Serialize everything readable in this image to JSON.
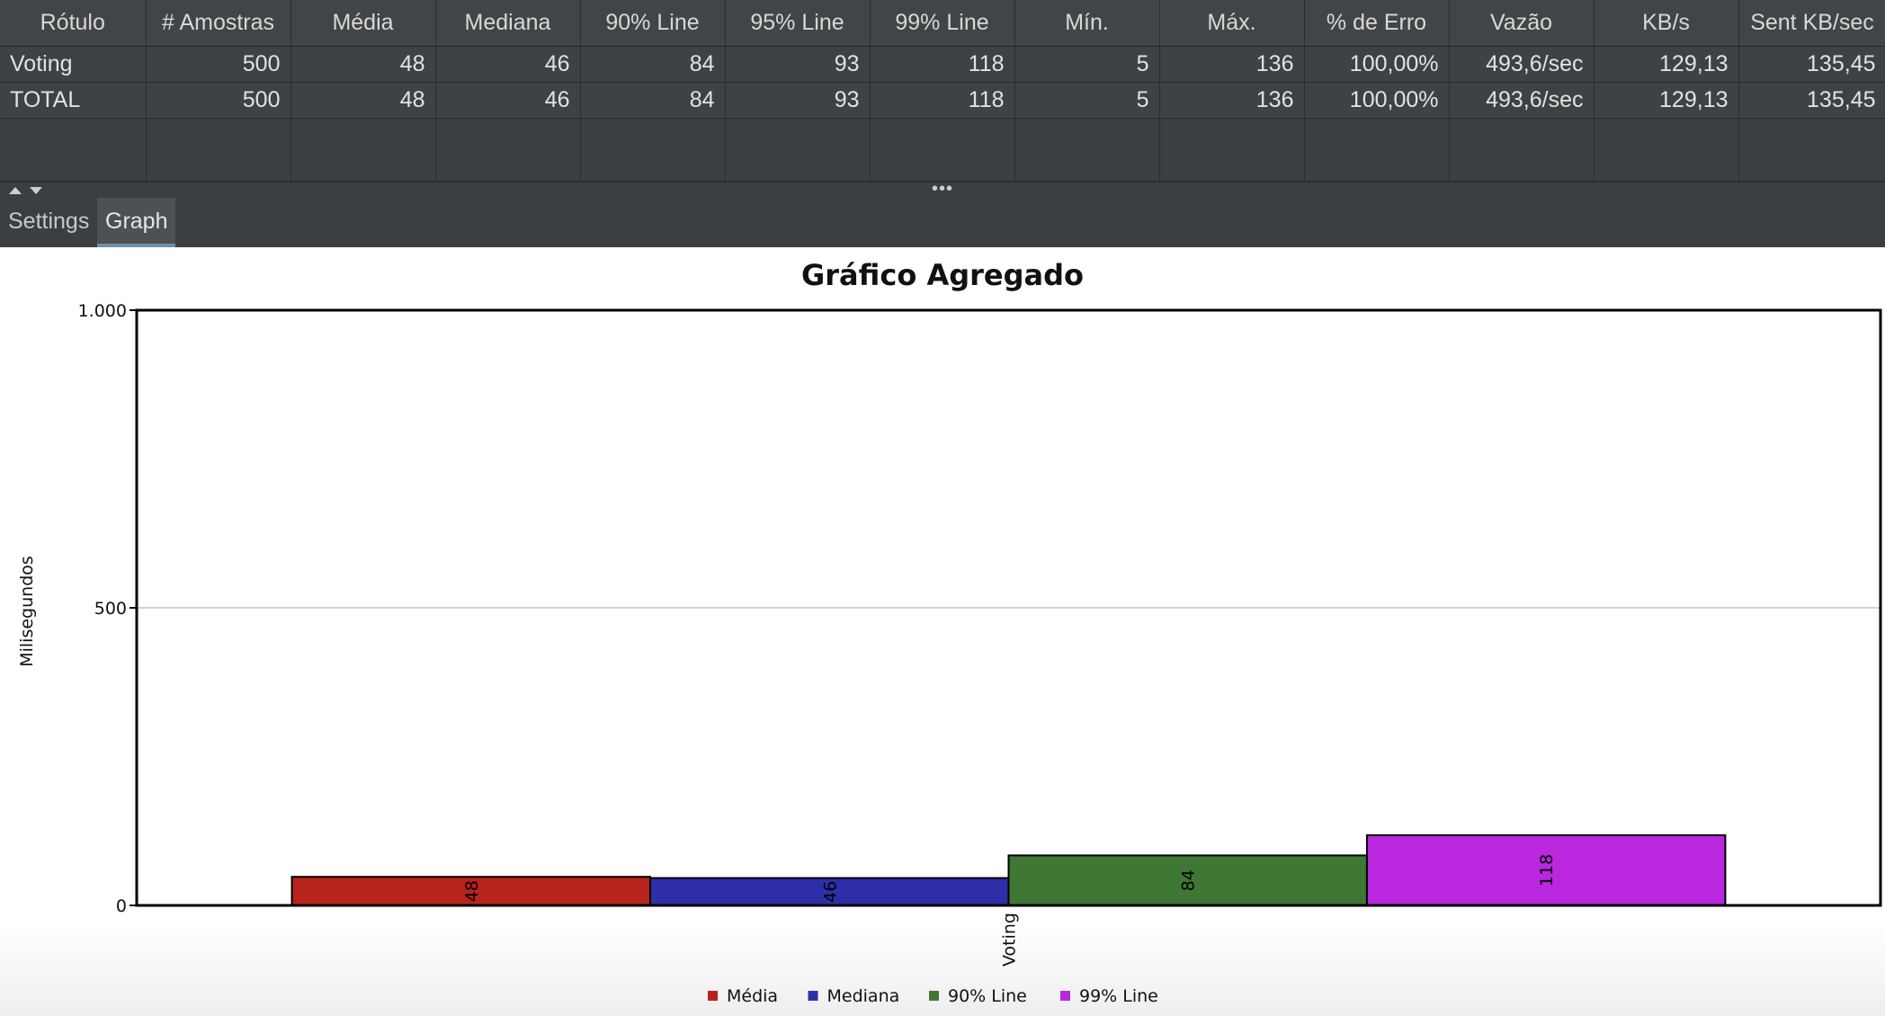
{
  "table": {
    "columns": [
      "Rótulo",
      "# Amostras",
      "Média",
      "Mediana",
      "90% Line",
      "95% Line",
      "99% Line",
      "Mín.",
      "Máx.",
      "% de Erro",
      "Vazão",
      "KB/s",
      "Sent KB/sec"
    ],
    "rows": [
      [
        "Voting",
        "500",
        "48",
        "46",
        "84",
        "93",
        "118",
        "5",
        "136",
        "100,00%",
        "493,6/sec",
        "129,13",
        "135,45"
      ],
      [
        "TOTAL",
        "500",
        "48",
        "46",
        "84",
        "93",
        "118",
        "5",
        "136",
        "100,00%",
        "493,6/sec",
        "129,13",
        "135,45"
      ]
    ]
  },
  "splitter": {
    "dots": "•••"
  },
  "tabs": [
    {
      "label": "Settings",
      "active": false
    },
    {
      "label": "Graph",
      "active": true
    }
  ],
  "chart_data": {
    "type": "bar",
    "title": "Gráfico Agregado",
    "ylabel": "Milisegundos",
    "xlabel": "",
    "categories": [
      "Voting"
    ],
    "series": [
      {
        "name": "Média",
        "values": [
          48
        ],
        "color": "#b8231c"
      },
      {
        "name": "Mediana",
        "values": [
          46
        ],
        "color": "#2e2fa8"
      },
      {
        "name": "90% Line",
        "values": [
          84
        ],
        "color": "#3f7734"
      },
      {
        "name": "99% Line",
        "values": [
          118
        ],
        "color": "#b927df"
      }
    ],
    "ylim": [
      0,
      1000
    ],
    "yticks": [
      0,
      500,
      1000
    ],
    "ytick_labels": [
      "0",
      "500",
      "1.000"
    ],
    "grid": true,
    "legend": "bottom-center",
    "data_labels": true
  }
}
